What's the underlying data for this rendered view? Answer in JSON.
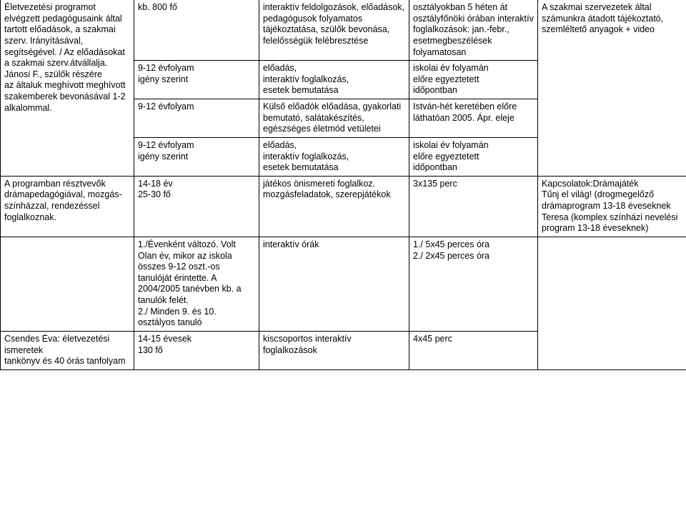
{
  "table": {
    "rows": [
      {
        "c1": "Életvezetési programot elvégzett pedagógusaink által tartott előadások, a szakmai szerv. Irányításával, segítségével. / Az előadásokat a szakmai szerv.átvállalja. Jánosi F., szülők részére\naz általuk meghívott meghívott szakemberek bevonásával 1-2 alkalommal.",
        "c2": "kb. 800 fő",
        "c3": "interaktív feldolgozások, előadások, pedagógusok folyamatos tájékoztatása, szülők bevonása, felelősségük felébresztése",
        "c4": "osztályokban 5 héten át osztályfőnöki órában interaktív foglalkozások: jan.-febr., esetmegbeszélések folyamatosan",
        "c5": "A szakmai szervezetek által számunkra átadott tájékoztató, szemléltető anyagok + video"
      },
      {
        "c2": "9-12 évfolyam\nigény szerint",
        "c3": "előadás,\ninteraktív foglalkozás,\nesetek bemutatása",
        "c4": "iskolai év folyamán\nelőre egyeztetett\nidőpontban"
      },
      {
        "c2": "9-12 évfolyam",
        "c3": "Külső előadók előadása, gyakorlati bemutató, salátakészítés, egészséges életmód vetületei",
        "c4": "István-hét keretében előre láthatóan 2005. Ápr. eleje"
      },
      {
        "c2": "9-12 évfolyam\nigény szerint",
        "c3": "előadás,\ninteraktív foglalkozás,\nesetek bemutatása",
        "c4": "iskolai év folyamán\nelőre egyeztetett\nidőpontban"
      },
      {
        "c1": "A programban résztvevők drámapedagógiával, mozgás-színházzal, rendezéssel foglalkoznak.",
        "c2": "14-18 év\n25-30 fő",
        "c3": "játékos önismereti foglalkoz. mozgásfeladatok, szerepjátékok",
        "c4": "3x135 perc",
        "c5": "Kapcsolatok:Drámajáték\nTűnj el világ! (drogmegelőző drámaprogram 13-18 éveseknek\nTeresa (komplex színházi nevelési program 13-18 éveseknek)"
      },
      {
        "c2": "1./Évenként változó. Volt Olan év, mikor az iskola összes 9-12 oszt.-os tanulóját érintette. A 2004/2005 tanévben kb. a tanulók felét.\n2./ Minden 9. és 10. osztályos tanuló",
        "c3": "interaktív órák",
        "c4": "1./ 5x45 perces óra\n2./ 2x45 perces óra"
      },
      {
        "c1": "Csendes Éva: életvezetési ismeretek\ntankönyv és 40 órás tanfolyam",
        "c2": "14-15 évesek\n130 fő",
        "c3": "kiscsoportos interaktív foglalkozások",
        "c4": "4x45 perc"
      }
    ]
  }
}
